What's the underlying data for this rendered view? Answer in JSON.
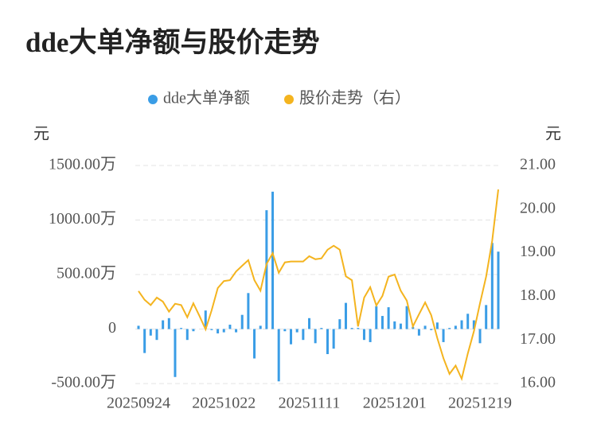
{
  "chart_data": {
    "type": "bar",
    "title": "dde大单净额与股价走势",
    "y_label": "元",
    "y2_label": "元",
    "categories": [
      "20250924",
      null,
      null,
      null,
      null,
      null,
      null,
      null,
      null,
      null,
      null,
      null,
      null,
      null,
      "20251022",
      null,
      null,
      null,
      null,
      null,
      null,
      null,
      null,
      null,
      null,
      null,
      null,
      null,
      "20251111",
      null,
      null,
      null,
      null,
      null,
      null,
      null,
      null,
      null,
      null,
      null,
      null,
      null,
      "20251201",
      null,
      null,
      null,
      null,
      null,
      null,
      null,
      null,
      null,
      null,
      null,
      null,
      null,
      "20251219",
      null,
      null,
      null
    ],
    "series": [
      {
        "name": "dde大单净额",
        "type": "bar",
        "color": "#3a9de6",
        "values": [
          30,
          -220,
          -60,
          -100,
          80,
          100,
          -440,
          10,
          -100,
          -20,
          0,
          170,
          -10,
          -40,
          -30,
          40,
          -30,
          130,
          330,
          -270,
          30,
          1090,
          1260,
          -480,
          -20,
          -140,
          -30,
          -100,
          100,
          -130,
          10,
          -230,
          -180,
          90,
          240,
          10,
          10,
          -100,
          -120,
          210,
          120,
          200,
          70,
          50,
          210,
          20,
          -60,
          30,
          -10,
          60,
          -120,
          10,
          30,
          80,
          140,
          80,
          -130,
          220,
          790,
          710
        ]
      },
      {
        "name": "股价走势（右）",
        "type": "line",
        "axis": "y2",
        "color": "#f4b41f",
        "values": [
          18.12,
          17.92,
          17.8,
          17.97,
          17.88,
          17.65,
          17.83,
          17.8,
          17.52,
          17.84,
          17.55,
          17.24,
          17.68,
          18.19,
          18.35,
          18.37,
          18.57,
          18.7,
          18.83,
          18.37,
          18.13,
          18.74,
          18.99,
          18.54,
          18.78,
          18.8,
          18.8,
          18.8,
          18.92,
          18.85,
          18.87,
          19.07,
          19.16,
          19.07,
          18.46,
          18.37,
          17.31,
          17.97,
          18.21,
          17.79,
          18.01,
          18.45,
          18.5,
          18.13,
          17.9,
          17.31,
          17.59,
          17.86,
          17.57,
          17.04,
          16.58,
          16.22,
          16.41,
          16.11,
          16.69,
          17.2,
          17.84,
          18.45,
          19.27,
          20.45
        ]
      }
    ],
    "ylim": [
      -500,
      1500
    ],
    "yticks": [
      {
        "value": -500,
        "label": "-500.00万"
      },
      0,
      {
        "value": 500,
        "label": "500.00万"
      },
      {
        "value": 1000,
        "label": "1000.00万"
      },
      {
        "value": 1500,
        "label": "1500.00万"
      }
    ],
    "y2lim": [
      16,
      21
    ],
    "y2ticks": [
      {
        "value": 16,
        "label": "16.00"
      },
      {
        "value": 17,
        "label": "17.00"
      },
      {
        "value": 18,
        "label": "18.00"
      },
      {
        "value": 19,
        "label": "19.00"
      },
      {
        "value": 20,
        "label": "20.00"
      },
      {
        "value": 21,
        "label": "21.00"
      }
    ],
    "grid": true,
    "legend": "top"
  }
}
